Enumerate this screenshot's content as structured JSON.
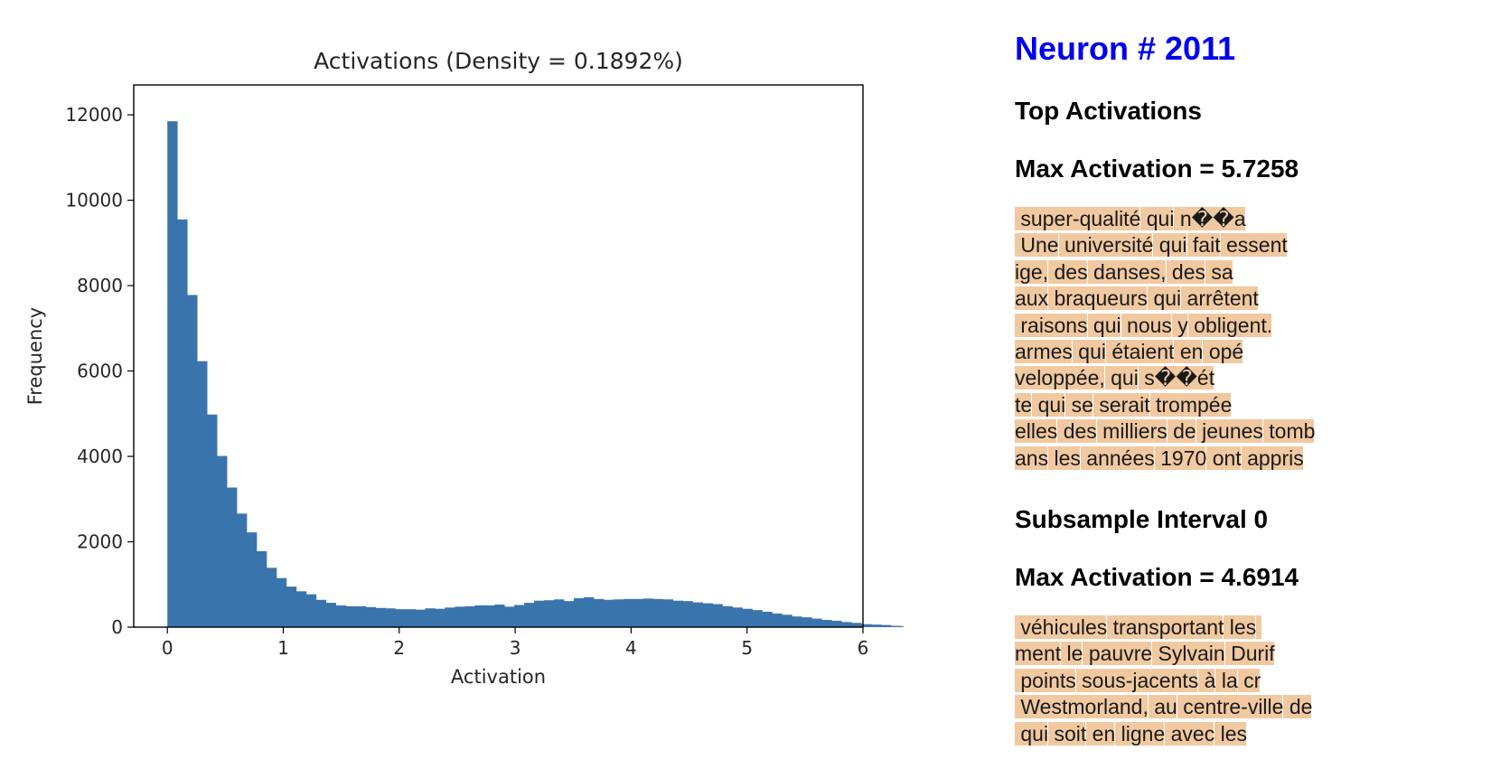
{
  "chart_data": {
    "type": "bar",
    "title": "Activations (Density = 0.1892%)",
    "xlabel": "Activation",
    "ylabel": "Frequency",
    "xlim": [
      -0.29,
      6.0
    ],
    "ylim": [
      0,
      12700
    ],
    "xticks": [
      0,
      1,
      2,
      3,
      4,
      5,
      6
    ],
    "yticks": [
      0,
      2000,
      4000,
      6000,
      8000,
      10000,
      12000
    ],
    "bar_color": "#3a74ad",
    "bin_width": 0.0855,
    "bin_start": 0,
    "values": [
      11850,
      9550,
      7780,
      6230,
      4980,
      4010,
      3270,
      2660,
      2220,
      1780,
      1390,
      1150,
      950,
      840,
      770,
      640,
      570,
      510,
      490,
      490,
      470,
      450,
      440,
      420,
      420,
      410,
      440,
      430,
      460,
      480,
      490,
      510,
      510,
      530,
      480,
      520,
      570,
      620,
      630,
      650,
      610,
      680,
      700,
      660,
      640,
      650,
      660,
      660,
      670,
      660,
      650,
      620,
      610,
      580,
      560,
      540,
      490,
      460,
      430,
      400,
      360,
      320,
      290,
      250,
      230,
      200,
      170,
      150,
      120,
      100,
      70,
      60,
      50,
      30,
      20,
      10
    ]
  },
  "panel": {
    "neuron_title": "Neuron # 2011",
    "top_heading": "Top Activations",
    "max_1": "Max Activation = 5.7258",
    "snippets_1": [
      " super-qualité qui n��a",
      " Une université qui fait essent",
      "ige, des danses, des sa",
      "aux braqueurs qui arrêtent",
      " raisons qui nous y obligent.",
      "armes qui étaient en opé",
      "veloppée, qui s��ét",
      "te qui se serait trompée",
      "elles des milliers de jeunes tomb",
      "ans les années 1970 ont appris"
    ],
    "sub_heading": "Subsample Interval 0",
    "max_2": "Max Activation = 4.6914",
    "snippets_2": [
      " véhicules transportant les ",
      "ment le pauvre Sylvain Durif",
      " points sous-jacents à la cr",
      " Westmorland, au centre-ville de",
      " qui soit en ligne avec les"
    ]
  }
}
